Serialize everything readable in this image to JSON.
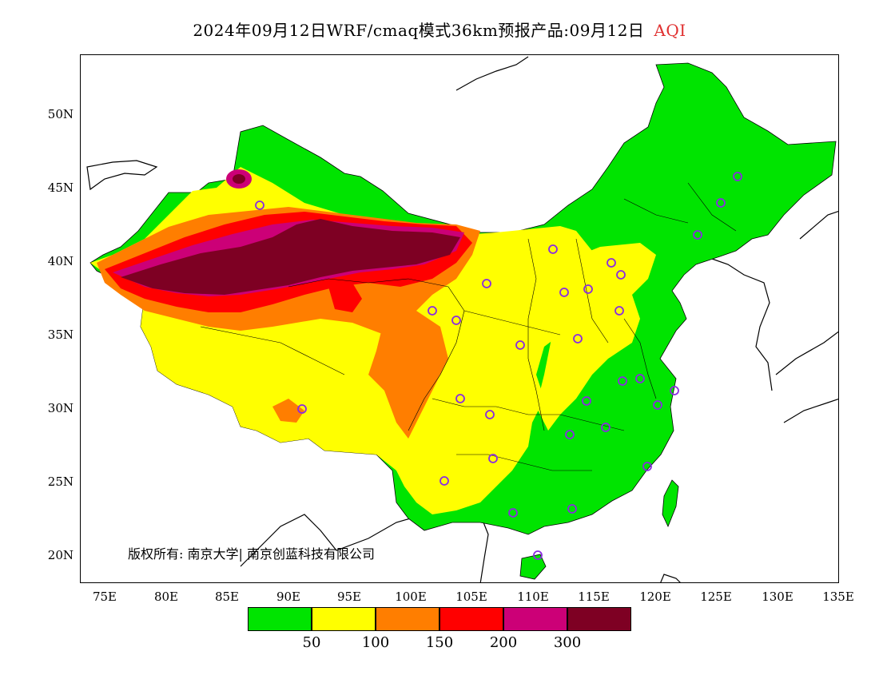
{
  "title": {
    "main": "2024年09月12日WRF/cmaq模式36km预报产品:09月12日",
    "variable": "AQI"
  },
  "axes": {
    "lat_labels": [
      "50N",
      "45N",
      "40N",
      "35N",
      "30N",
      "25N",
      "20N"
    ],
    "lon_labels": [
      "75E",
      "80E",
      "85E",
      "90E",
      "95E",
      "100E",
      "105E",
      "110E",
      "115E",
      "120E",
      "125E",
      "130E",
      "135E"
    ]
  },
  "copyright": "版权所有: 南京大学| 南京创蓝科技有限公司",
  "legend": {
    "colors": [
      "#00e400",
      "#ffff00",
      "#ff7e00",
      "#ff0000",
      "#cc0077",
      "#7e0023"
    ],
    "labels": [
      "50",
      "100",
      "150",
      "200",
      "300"
    ]
  },
  "map": {
    "region": "China",
    "projection": "lat-lon",
    "lon_range": [
      73,
      135
    ],
    "lat_range": [
      18,
      54
    ],
    "markers": "purple circles at city stations"
  }
}
